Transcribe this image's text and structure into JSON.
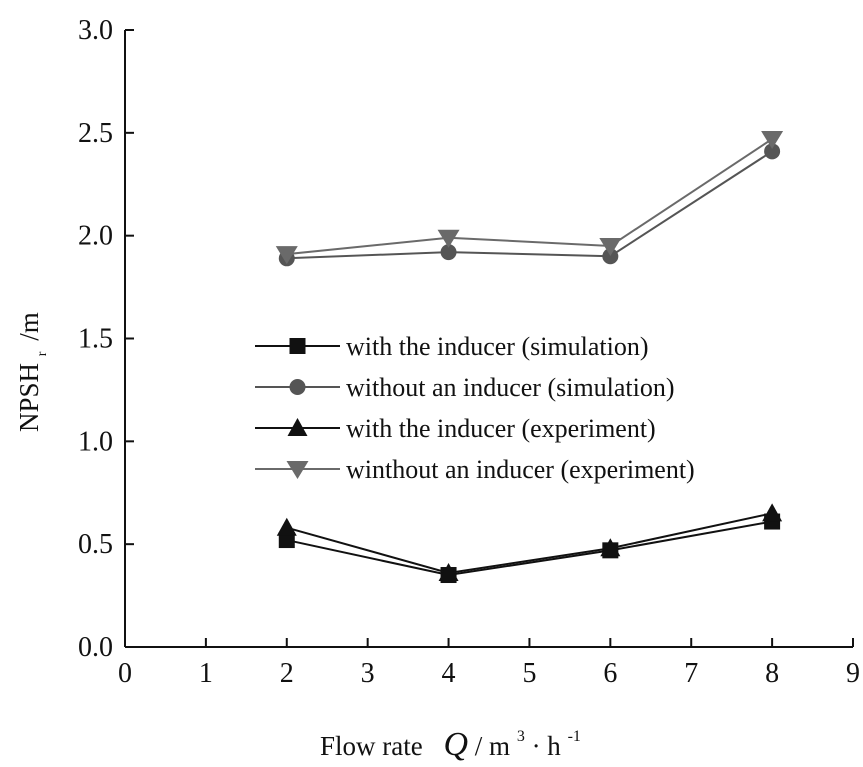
{
  "chart_data": {
    "type": "line",
    "title": "",
    "xlabel": "Flow rate",
    "xlabel_symbol": "Q",
    "xlabel_unit_prefix": "/ m",
    "xlabel_unit_sup1": "3",
    "xlabel_unit_mid": "· h",
    "xlabel_unit_sup2": "-1",
    "ylabel": "NPSH",
    "ylabel_sub": "r",
    "ylabel_unit": "/m",
    "xlim": [
      0,
      9
    ],
    "ylim": [
      0.0,
      3.0
    ],
    "x_ticks": [
      "0",
      "1",
      "2",
      "3",
      "4",
      "5",
      "6",
      "7",
      "8",
      "9"
    ],
    "y_ticks": [
      "0.0",
      "0.5",
      "1.0",
      "1.5",
      "2.0",
      "2.5",
      "3.0"
    ],
    "grid": false,
    "legend_position": "center",
    "x": [
      2,
      4,
      6,
      8
    ],
    "series": [
      {
        "name": "with the inducer (simulation)",
        "marker": "square",
        "color": "#111111",
        "values": [
          0.52,
          0.35,
          0.47,
          0.61
        ]
      },
      {
        "name": "without an inducer (simulation)",
        "marker": "circle",
        "color": "#555555",
        "values": [
          1.89,
          1.92,
          1.9,
          2.41
        ]
      },
      {
        "name": "with the inducer (experiment)",
        "marker": "triangle-up",
        "color": "#111111",
        "values": [
          0.58,
          0.36,
          0.48,
          0.65
        ]
      },
      {
        "name": "winthout an inducer (experiment)",
        "marker": "triangle-down",
        "color": "#6a6a6a",
        "values": [
          1.91,
          1.99,
          1.95,
          2.47
        ]
      }
    ]
  }
}
